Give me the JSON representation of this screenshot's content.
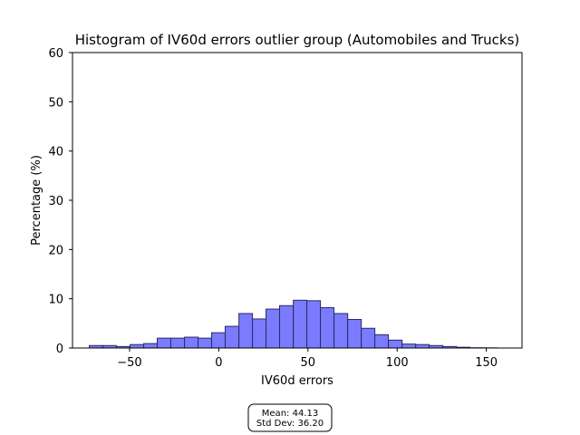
{
  "chart_data": {
    "type": "histogram",
    "title": "Histogram of IV60d errors outlier group (Automobiles and Trucks)",
    "xlabel": "IV60d errors",
    "ylabel": "Percentage (%)",
    "xlim": [
      -82,
      170
    ],
    "ylim": [
      0,
      60
    ],
    "xticks": [
      -50,
      0,
      50,
      100,
      150
    ],
    "xtick_labels": [
      "−50",
      "0",
      "50",
      "100",
      "150"
    ],
    "yticks": [
      0,
      10,
      20,
      30,
      40,
      50,
      60
    ],
    "ytick_labels": [
      "0",
      "10",
      "20",
      "30",
      "40",
      "50",
      "60"
    ],
    "grid": false,
    "bar_color": "#7b7bff",
    "bar_edge_color": "#2a2a66",
    "bins": [
      {
        "x0": -72.6,
        "x1": -65.0,
        "value": 0.5
      },
      {
        "x0": -65.0,
        "x1": -57.4,
        "value": 0.5
      },
      {
        "x0": -57.4,
        "x1": -49.7,
        "value": 0.3
      },
      {
        "x0": -49.7,
        "x1": -42.1,
        "value": 0.7
      },
      {
        "x0": -42.1,
        "x1": -34.5,
        "value": 0.9
      },
      {
        "x0": -34.5,
        "x1": -26.9,
        "value": 2.0
      },
      {
        "x0": -26.9,
        "x1": -19.2,
        "value": 2.0
      },
      {
        "x0": -19.2,
        "x1": -11.6,
        "value": 2.2
      },
      {
        "x0": -11.6,
        "x1": -4.0,
        "value": 2.0
      },
      {
        "x0": -4.0,
        "x1": 3.6,
        "value": 3.1
      },
      {
        "x0": 3.6,
        "x1": 11.3,
        "value": 4.4
      },
      {
        "x0": 11.3,
        "x1": 18.9,
        "value": 7.0
      },
      {
        "x0": 18.9,
        "x1": 26.5,
        "value": 5.9
      },
      {
        "x0": 26.5,
        "x1": 34.1,
        "value": 7.9
      },
      {
        "x0": 34.1,
        "x1": 41.8,
        "value": 8.6
      },
      {
        "x0": 41.8,
        "x1": 49.4,
        "value": 9.7
      },
      {
        "x0": 49.4,
        "x1": 57.0,
        "value": 9.6
      },
      {
        "x0": 57.0,
        "x1": 64.6,
        "value": 8.2
      },
      {
        "x0": 64.6,
        "x1": 72.3,
        "value": 7.0
      },
      {
        "x0": 72.3,
        "x1": 79.9,
        "value": 5.8
      },
      {
        "x0": 79.9,
        "x1": 87.5,
        "value": 4.0
      },
      {
        "x0": 87.5,
        "x1": 95.1,
        "value": 2.7
      },
      {
        "x0": 95.1,
        "x1": 102.8,
        "value": 1.6
      },
      {
        "x0": 102.8,
        "x1": 110.4,
        "value": 0.8
      },
      {
        "x0": 110.4,
        "x1": 118.0,
        "value": 0.7
      },
      {
        "x0": 118.0,
        "x1": 125.6,
        "value": 0.5
      },
      {
        "x0": 125.6,
        "x1": 133.3,
        "value": 0.3
      },
      {
        "x0": 133.3,
        "x1": 140.9,
        "value": 0.15
      },
      {
        "x0": 140.9,
        "x1": 148.5,
        "value": 0.05
      },
      {
        "x0": 148.5,
        "x1": 156.1,
        "value": 0.03
      }
    ],
    "stats_box": {
      "mean_text": "Mean: 44.13",
      "std_text": "Std Dev: 36.20"
    }
  }
}
